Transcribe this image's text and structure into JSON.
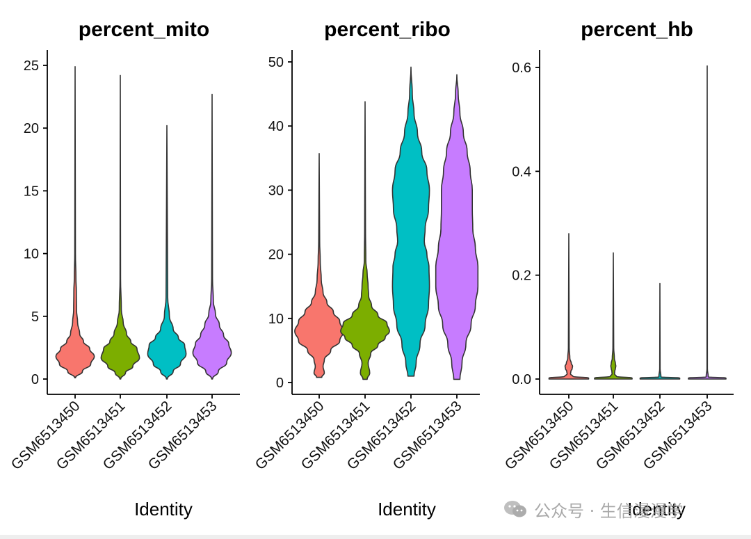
{
  "chart_data": [
    {
      "type": "violin",
      "title": "percent_mito",
      "xlabel": "Identity",
      "ylabel": "",
      "ylim": [
        0,
        25
      ],
      "yticks": [
        0,
        5,
        10,
        15,
        20,
        25
      ],
      "categories": [
        "GSM6513450",
        "GSM6513451",
        "GSM6513452",
        "GSM6513453"
      ],
      "colors": [
        "#F8766D",
        "#7CAE00",
        "#00BFC4",
        "#C77CFF"
      ],
      "series": [
        {
          "category": "GSM6513450",
          "min": 0.1,
          "max": 24.9,
          "profile": [
            [
              0.1,
              0.02
            ],
            [
              0.6,
              0.35
            ],
            [
              1.2,
              0.75
            ],
            [
              1.8,
              0.92
            ],
            [
              2.4,
              0.7
            ],
            [
              3.0,
              0.4
            ],
            [
              3.6,
              0.22
            ],
            [
              4.5,
              0.12
            ],
            [
              5.5,
              0.07
            ],
            [
              7.0,
              0.06
            ],
            [
              8.0,
              0.04
            ],
            [
              10,
              0.015
            ],
            [
              24.9,
              0
            ]
          ]
        },
        {
          "category": "GSM6513451",
          "min": 0.0,
          "max": 24.2,
          "profile": [
            [
              0.0,
              0.02
            ],
            [
              0.5,
              0.25
            ],
            [
              1.0,
              0.6
            ],
            [
              1.7,
              0.92
            ],
            [
              2.4,
              0.8
            ],
            [
              3.0,
              0.5
            ],
            [
              3.6,
              0.3
            ],
            [
              4.5,
              0.14
            ],
            [
              5.5,
              0.05
            ],
            [
              8,
              0.015
            ],
            [
              24.2,
              0
            ]
          ]
        },
        {
          "category": "GSM6513452",
          "min": 0.0,
          "max": 20.2,
          "profile": [
            [
              0.0,
              0.02
            ],
            [
              0.6,
              0.3
            ],
            [
              1.2,
              0.65
            ],
            [
              2.0,
              0.92
            ],
            [
              2.7,
              0.85
            ],
            [
              3.3,
              0.55
            ],
            [
              4.0,
              0.3
            ],
            [
              5.0,
              0.12
            ],
            [
              6.5,
              0.04
            ],
            [
              20.2,
              0
            ]
          ]
        },
        {
          "category": "GSM6513453",
          "min": 0.0,
          "max": 22.7,
          "profile": [
            [
              0.0,
              0.02
            ],
            [
              0.6,
              0.3
            ],
            [
              1.3,
              0.7
            ],
            [
              2.1,
              0.92
            ],
            [
              2.8,
              0.8
            ],
            [
              3.5,
              0.55
            ],
            [
              4.3,
              0.35
            ],
            [
              5.2,
              0.16
            ],
            [
              6.2,
              0.06
            ],
            [
              8,
              0.02
            ],
            [
              22.7,
              0
            ]
          ]
        }
      ]
    },
    {
      "type": "violin",
      "title": "percent_ribo",
      "xlabel": "Identity",
      "ylabel": "",
      "ylim": [
        0,
        50
      ],
      "yticks": [
        0,
        10,
        20,
        30,
        40,
        50
      ],
      "categories": [
        "GSM6513450",
        "GSM6513451",
        "GSM6513452",
        "GSM6513453"
      ],
      "colors": [
        "#F8766D",
        "#7CAE00",
        "#00BFC4",
        "#C77CFF"
      ],
      "series": [
        {
          "category": "GSM6513450",
          "min": 0.8,
          "max": 35.7,
          "profile": [
            [
              0.8,
              0.1
            ],
            [
              1.5,
              0.2
            ],
            [
              2.5,
              0.15
            ],
            [
              3.5,
              0.2
            ],
            [
              5,
              0.45
            ],
            [
              6.5,
              0.8
            ],
            [
              8,
              0.95
            ],
            [
              9.5,
              0.8
            ],
            [
              11,
              0.55
            ],
            [
              12.5,
              0.3
            ],
            [
              14,
              0.15
            ],
            [
              16,
              0.08
            ],
            [
              19,
              0.04
            ],
            [
              22,
              0.02
            ],
            [
              35.7,
              0
            ]
          ]
        },
        {
          "category": "GSM6513451",
          "min": 0.5,
          "max": 43.8,
          "profile": [
            [
              0.5,
              0.08
            ],
            [
              1.5,
              0.18
            ],
            [
              3,
              0.12
            ],
            [
              4.5,
              0.22
            ],
            [
              5.8,
              0.5
            ],
            [
              7,
              0.78
            ],
            [
              8,
              0.95
            ],
            [
              9.2,
              0.85
            ],
            [
              10.5,
              0.5
            ],
            [
              12,
              0.25
            ],
            [
              13.5,
              0.14
            ],
            [
              15,
              0.12
            ],
            [
              17,
              0.08
            ],
            [
              19,
              0.03
            ],
            [
              24,
              0.015
            ],
            [
              43.8,
              0
            ]
          ]
        },
        {
          "category": "GSM6513452",
          "min": 1.0,
          "max": 49.2,
          "profile": [
            [
              1.0,
              0.12
            ],
            [
              3,
              0.2
            ],
            [
              6,
              0.35
            ],
            [
              9,
              0.55
            ],
            [
              12,
              0.68
            ],
            [
              15,
              0.72
            ],
            [
              18,
              0.7
            ],
            [
              20,
              0.62
            ],
            [
              22,
              0.52
            ],
            [
              24,
              0.55
            ],
            [
              27,
              0.68
            ],
            [
              30,
              0.72
            ],
            [
              33,
              0.62
            ],
            [
              36,
              0.42
            ],
            [
              39,
              0.25
            ],
            [
              42,
              0.12
            ],
            [
              45,
              0.05
            ],
            [
              49.2,
              0
            ]
          ]
        },
        {
          "category": "GSM6513453",
          "min": 0.5,
          "max": 48.0,
          "profile": [
            [
              0.5,
              0.12
            ],
            [
              3,
              0.2
            ],
            [
              6,
              0.35
            ],
            [
              9,
              0.55
            ],
            [
              12,
              0.72
            ],
            [
              15,
              0.82
            ],
            [
              18,
              0.82
            ],
            [
              21,
              0.72
            ],
            [
              24,
              0.62
            ],
            [
              27,
              0.6
            ],
            [
              30,
              0.6
            ],
            [
              33,
              0.52
            ],
            [
              36,
              0.4
            ],
            [
              39,
              0.25
            ],
            [
              42,
              0.12
            ],
            [
              45,
              0.05
            ],
            [
              48,
              0
            ]
          ]
        }
      ]
    },
    {
      "type": "violin",
      "title": "percent_hb",
      "xlabel": "Identity",
      "ylabel": "",
      "ylim": [
        0,
        0.6
      ],
      "yticks": [
        "0.0",
        "0.2",
        "0.4",
        "0.6"
      ],
      "categories": [
        "GSM6513450",
        "GSM6513451",
        "GSM6513452",
        "GSM6513453"
      ],
      "colors": [
        "#F8766D",
        "#7CAE00",
        "#00BFC4",
        "#C77CFF"
      ],
      "series": [
        {
          "category": "GSM6513450",
          "min": 0,
          "max": 0.28,
          "profile": [
            [
              0,
              0.95
            ],
            [
              0.002,
              0.95
            ],
            [
              0.005,
              0.2
            ],
            [
              0.01,
              0.08
            ],
            [
              0.015,
              0.1
            ],
            [
              0.02,
              0.16
            ],
            [
              0.025,
              0.18
            ],
            [
              0.03,
              0.12
            ],
            [
              0.04,
              0.05
            ],
            [
              0.06,
              0.02
            ],
            [
              0.28,
              0
            ]
          ]
        },
        {
          "category": "GSM6513451",
          "min": 0,
          "max": 0.243,
          "profile": [
            [
              0,
              0.9
            ],
            [
              0.002,
              0.9
            ],
            [
              0.005,
              0.15
            ],
            [
              0.01,
              0.06
            ],
            [
              0.015,
              0.07
            ],
            [
              0.02,
              0.1
            ],
            [
              0.025,
              0.12
            ],
            [
              0.03,
              0.1
            ],
            [
              0.04,
              0.05
            ],
            [
              0.06,
              0.02
            ],
            [
              0.243,
              0
            ]
          ]
        },
        {
          "category": "GSM6513452",
          "min": 0,
          "max": 0.184,
          "profile": [
            [
              0,
              0.95
            ],
            [
              0.002,
              0.95
            ],
            [
              0.004,
              0.05
            ],
            [
              0.02,
              0.01
            ],
            [
              0.184,
              0
            ]
          ]
        },
        {
          "category": "GSM6513453",
          "min": 0,
          "max": 0.603,
          "profile": [
            [
              0,
              0.9
            ],
            [
              0.002,
              0.9
            ],
            [
              0.004,
              0.05
            ],
            [
              0.02,
              0.01
            ],
            [
              0.603,
              0
            ]
          ]
        }
      ]
    }
  ],
  "watermark": {
    "text": "公众号 · 生信漫漫学"
  }
}
